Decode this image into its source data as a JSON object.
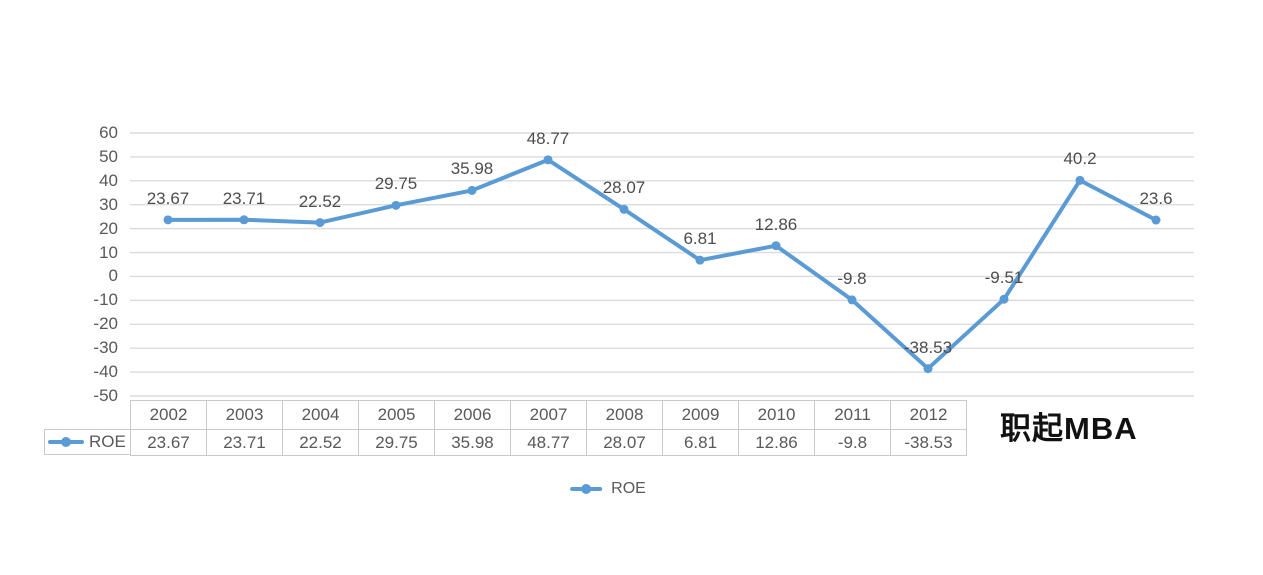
{
  "watermark": "职起MBA",
  "legend": {
    "label": "ROE"
  },
  "colors": {
    "line": "#5B9BD5",
    "grid": "#DCDCDC",
    "axis_text": "#595959",
    "label_text": "#4d4d4d",
    "table_border": "#C9C9C9",
    "table_text": "#595959",
    "watermark_text": "#111111",
    "background": "#FFFFFF"
  },
  "chart_data": {
    "type": "line",
    "title": "",
    "xlabel": "",
    "ylabel": "",
    "categories": [
      "2002",
      "2003",
      "2004",
      "2005",
      "2006",
      "2007",
      "2008",
      "2009",
      "2010",
      "2011",
      "2012",
      "",
      "",
      ""
    ],
    "series": [
      {
        "name": "ROE",
        "values": [
          23.67,
          23.71,
          22.52,
          29.75,
          35.98,
          48.77,
          28.07,
          6.81,
          12.86,
          -9.8,
          -38.53,
          -9.51,
          40.2,
          23.6
        ]
      }
    ],
    "data_labels": [
      "23.67",
      "23.71",
      "22.52",
      "29.75",
      "35.98",
      "48.77",
      "28.07",
      "6.81",
      "12.86",
      "-9.8",
      "-38.53",
      "-9.51",
      "40.2",
      "23.6"
    ],
    "ylim": [
      -50,
      60
    ],
    "ytick_step": 10,
    "grid": true,
    "legend_position": "bottom",
    "data_table": {
      "legend_label": "ROE",
      "columns": [
        "2002",
        "2003",
        "2004",
        "2005",
        "2006",
        "2007",
        "2008",
        "2009",
        "2010",
        "2011",
        "2012"
      ],
      "values": [
        "23.67",
        "23.71",
        "22.52",
        "29.75",
        "35.98",
        "48.77",
        "28.07",
        "6.81",
        "12.86",
        "-9.8",
        "-38.53"
      ]
    }
  }
}
